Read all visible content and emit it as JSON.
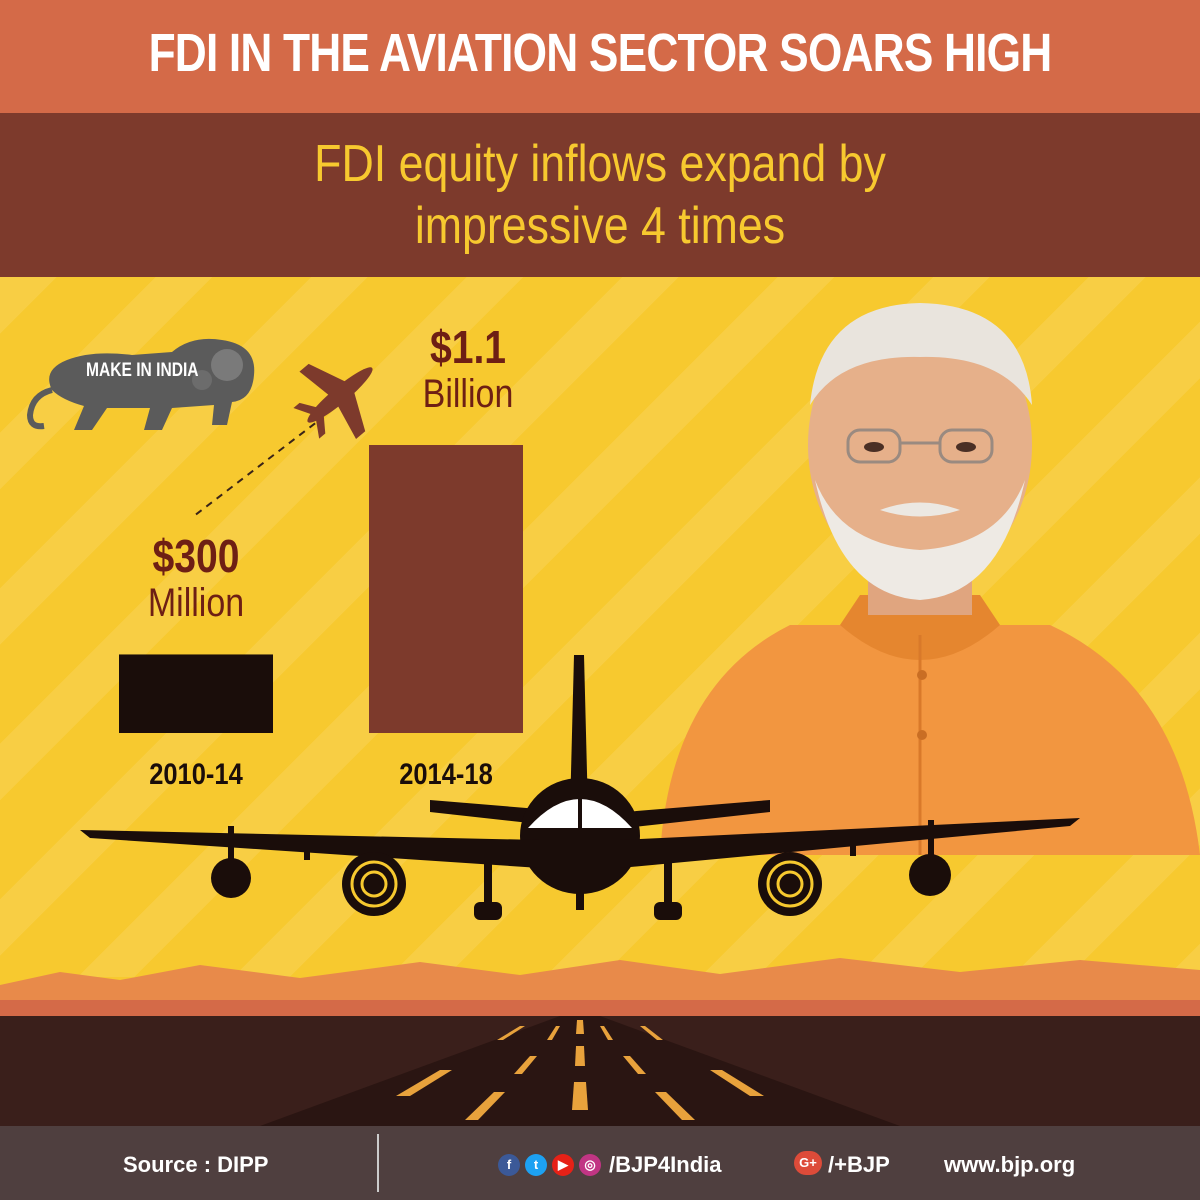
{
  "header": {
    "title": "FDI IN THE AVIATION SECTOR SOARS HIGH",
    "subtitle_line1": "FDI equity inflows expand by",
    "subtitle_line2": "impressive 4 times"
  },
  "logo": {
    "text": "MAKE IN INDIA"
  },
  "colors": {
    "orange": "#d46a48",
    "maroon": "#7d3a2c",
    "yellow": "#f7c92f",
    "dark": "#1a0d0a",
    "footer": "#4f3f3f"
  },
  "chart_data": {
    "type": "bar",
    "title": "",
    "xlabel": "",
    "ylabel": "",
    "categories": [
      "2010-14",
      "2014-18"
    ],
    "values": [
      0.3,
      1.1
    ],
    "value_labels": [
      {
        "amount": "$300",
        "unit": "Million"
      },
      {
        "amount": "$1.1",
        "unit": "Billion"
      }
    ],
    "bar_colors": [
      "#1a0d0a",
      "#7d3a2c"
    ],
    "grid": false,
    "legend": "none",
    "ylim": [
      0,
      1.1
    ]
  },
  "footer": {
    "source": "Source : DIPP",
    "social_icons": [
      "facebook-icon",
      "twitter-icon",
      "youtube-icon",
      "instagram-icon"
    ],
    "social_handle": "/BJP4India",
    "gplus_label": "G+",
    "gplus_handle": "/+BJP",
    "website": "www.bjp.org"
  }
}
